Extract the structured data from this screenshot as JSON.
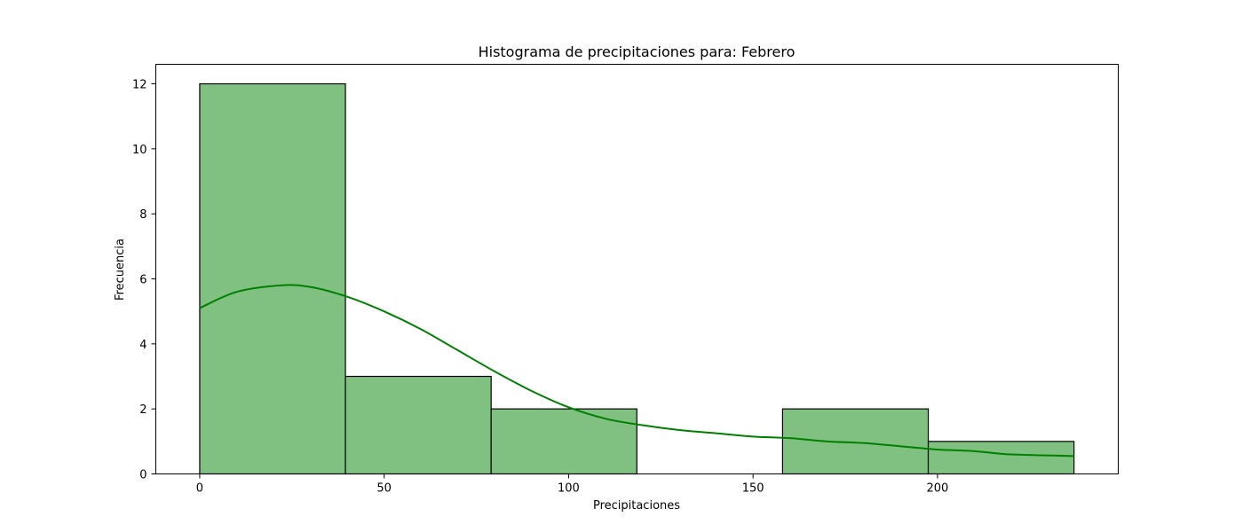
{
  "chart_data": {
    "type": "bar",
    "subtype": "histogram-with-kde",
    "title": "Histograma de precipitaciones para: Febrero",
    "xlabel": "Precipitaciones",
    "ylabel": "Frecuencia",
    "xlim": [
      -11.9,
      249.0
    ],
    "ylim": [
      0,
      12.6
    ],
    "xticks": [
      0,
      50,
      100,
      150,
      200
    ],
    "yticks": [
      0,
      2,
      4,
      6,
      8,
      10,
      12
    ],
    "grid": false,
    "bar_color": "#80c080",
    "edge_color": "#000000",
    "kde_color": "#008000",
    "bins": [
      {
        "x0": 0,
        "x1": 39.5,
        "count": 12
      },
      {
        "x0": 39.5,
        "x1": 79.0,
        "count": 3
      },
      {
        "x0": 79.0,
        "x1": 118.5,
        "count": 2
      },
      {
        "x0": 118.5,
        "x1": 158.0,
        "count": 0
      },
      {
        "x0": 158.0,
        "x1": 197.5,
        "count": 2
      },
      {
        "x0": 197.5,
        "x1": 237.0,
        "count": 1
      }
    ],
    "kde": {
      "x": [
        0,
        10,
        22,
        30,
        40,
        50,
        60,
        70,
        80,
        90,
        100,
        110,
        120,
        130,
        140,
        150,
        160,
        170,
        180,
        190,
        200,
        210,
        220,
        237
      ],
      "y": [
        5.1,
        5.6,
        5.8,
        5.75,
        5.45,
        5.0,
        4.45,
        3.8,
        3.15,
        2.55,
        2.05,
        1.7,
        1.5,
        1.35,
        1.25,
        1.15,
        1.1,
        1.0,
        0.95,
        0.85,
        0.75,
        0.7,
        0.6,
        0.55
      ]
    }
  }
}
